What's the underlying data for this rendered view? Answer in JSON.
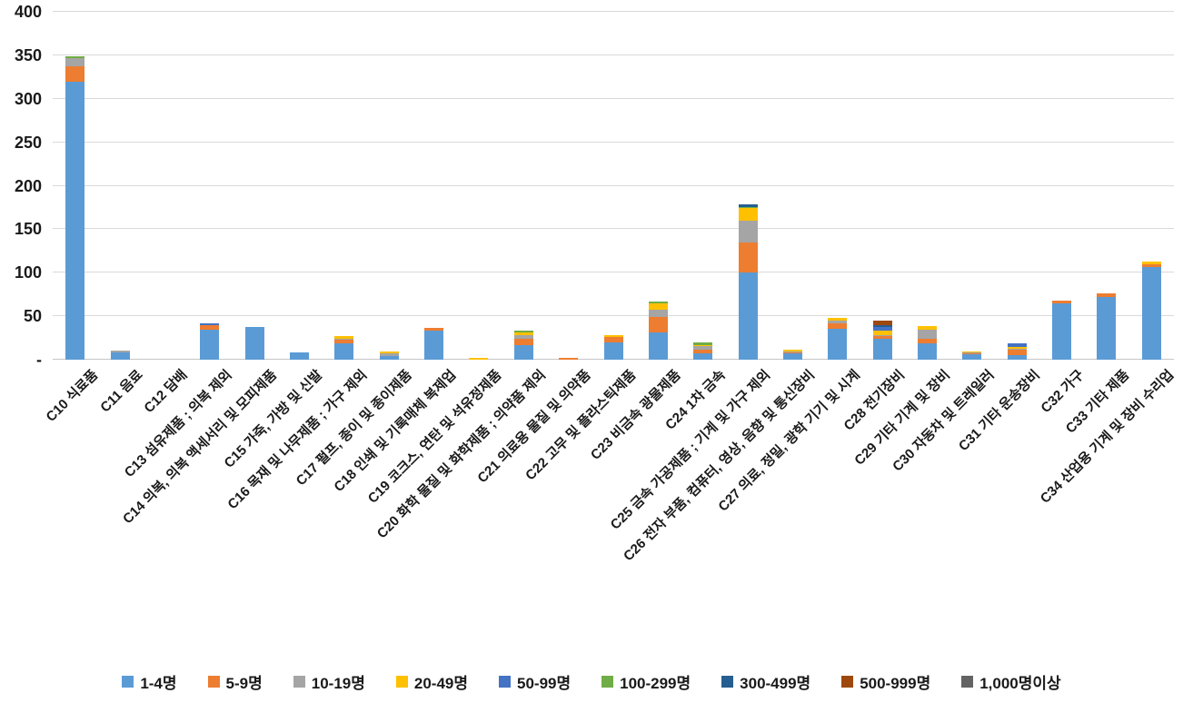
{
  "chart_data": {
    "type": "bar",
    "stacked": true,
    "title": "",
    "xlabel": "",
    "ylabel": "",
    "ylim": [
      0,
      400
    ],
    "ytick_step": 50,
    "ytick_zero_label": "-",
    "grid": true,
    "legend_position": "bottom",
    "categories": [
      "C10 식료품",
      "C11 음료",
      "C12 담배",
      "C13 섬유제품 ; 의복 제외",
      "C14 의복, 의복 액세서리 및 모피제품",
      "C15 가죽, 가방 및 신발",
      "C16 목재 및 나무제품 ; 가구 제외",
      "C17 펄프, 종이 및 종이제품",
      "C18 인쇄 및 기록매체 복제업",
      "C19 코크스, 연탄 및 석유정제품",
      "C20 화학 물질 및 화학제품 ; 의약품 제외",
      "C21 의료용 물질 및 의약품",
      "C22 고무 및 플라스틱제품",
      "C23 비금속 광물제품",
      "C24 1차 금속",
      "C25 금속 가공제품 ; 기계 및 가구 제외",
      "C26 전자 부품, 컴퓨터, 영상, 음향 및 통신장비",
      "C27 의료, 정밀, 광학 기기 및 시계",
      "C28 전기장비",
      "C29 기타 기계 및 장비",
      "C30 자동차 및 트레일러",
      "C31 기타 운송장비",
      "C32 가구",
      "C33 기타 제품",
      "C34 산업용 기계 및 장비 수리업"
    ],
    "series": [
      {
        "name": "1-4명",
        "color": "#5B9BD5",
        "values": [
          320,
          8,
          0,
          35,
          38,
          8,
          19,
          4,
          33,
          0,
          17,
          0,
          20,
          31,
          7,
          100,
          7,
          36,
          24,
          19,
          6,
          5,
          65,
          72,
          107
        ]
      },
      {
        "name": "5-9명",
        "color": "#ED7D31",
        "values": [
          17,
          0,
          0,
          5,
          0,
          0,
          4,
          0,
          4,
          0,
          7,
          2,
          6,
          18,
          4,
          35,
          1,
          6,
          3,
          5,
          1,
          7,
          3,
          4,
          3
        ]
      },
      {
        "name": "10-19명",
        "color": "#A5A5A5",
        "values": [
          10,
          2,
          0,
          0,
          0,
          0,
          1,
          3,
          0,
          0,
          4,
          0,
          0,
          8,
          5,
          25,
          1,
          3,
          1,
          10,
          1,
          1,
          0,
          0,
          0
        ]
      },
      {
        "name": "20-49명",
        "color": "#FFC000",
        "values": [
          0,
          0,
          0,
          0,
          0,
          0,
          3,
          2,
          0,
          2,
          3,
          0,
          2,
          8,
          1,
          14,
          3,
          3,
          5,
          5,
          1,
          2,
          0,
          0,
          3
        ]
      },
      {
        "name": "50-99명",
        "color": "#4472C4",
        "values": [
          0,
          0,
          0,
          2,
          0,
          0,
          0,
          0,
          0,
          0,
          0,
          0,
          0,
          0,
          0,
          0,
          0,
          0,
          5,
          0,
          0,
          4,
          0,
          0,
          0
        ]
      },
      {
        "name": "100-299명",
        "color": "#70AD47",
        "values": [
          2,
          0,
          0,
          0,
          0,
          0,
          0,
          0,
          0,
          0,
          3,
          0,
          0,
          2,
          3,
          2,
          0,
          0,
          0,
          0,
          0,
          0,
          0,
          0,
          0
        ]
      },
      {
        "name": "300-499명",
        "color": "#255E91",
        "values": [
          0,
          0,
          0,
          0,
          0,
          0,
          0,
          0,
          0,
          0,
          0,
          0,
          0,
          0,
          0,
          3,
          0,
          0,
          2,
          0,
          0,
          0,
          0,
          0,
          0
        ]
      },
      {
        "name": "500-999명",
        "color": "#9E480E",
        "values": [
          0,
          0,
          0,
          0,
          0,
          0,
          0,
          0,
          0,
          0,
          0,
          0,
          0,
          0,
          0,
          0,
          0,
          0,
          5,
          0,
          0,
          0,
          0,
          0,
          0
        ]
      },
      {
        "name": "1,000명이상",
        "color": "#636363",
        "values": [
          0,
          0,
          0,
          0,
          0,
          0,
          0,
          0,
          0,
          0,
          0,
          0,
          0,
          0,
          0,
          0,
          0,
          0,
          0,
          0,
          0,
          0,
          0,
          0,
          0
        ]
      }
    ]
  }
}
